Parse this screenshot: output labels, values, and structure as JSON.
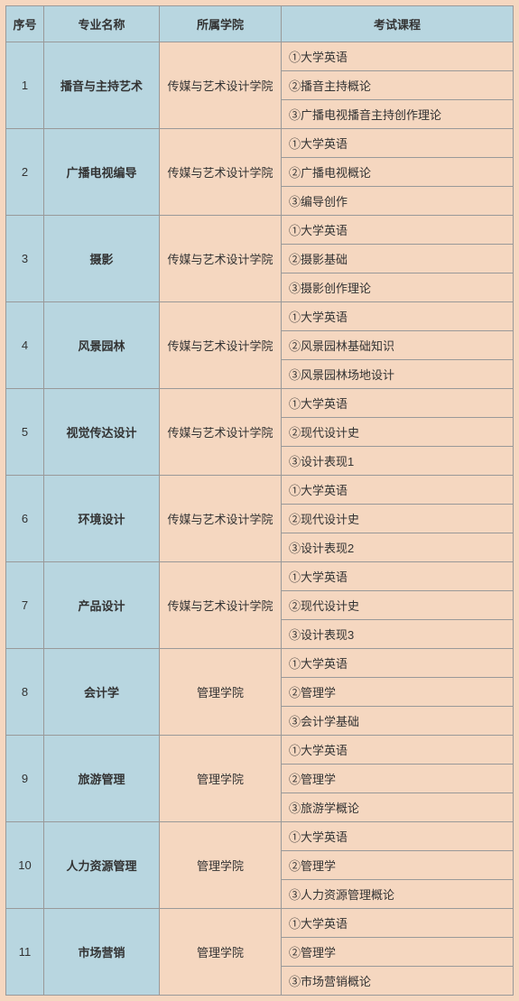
{
  "table": {
    "headers": {
      "seq": "序号",
      "major": "专业名称",
      "college": "所属学院",
      "course": "考试课程"
    },
    "colors": {
      "header_bg": "#b8d6e0",
      "blue_cell_bg": "#b8d6e0",
      "peach_cell_bg": "#f5d7c0",
      "border": "#999",
      "text": "#333"
    },
    "column_widths": {
      "seq": 42,
      "major": 128,
      "college": 135
    },
    "fontsize": 13,
    "rows": [
      {
        "seq": "1",
        "major": "播音与主持艺术",
        "college": "传媒与艺术设计学院",
        "courses": [
          "①大学英语",
          "②播音主持概论",
          "③广播电视播音主持创作理论"
        ]
      },
      {
        "seq": "2",
        "major": "广播电视编导",
        "college": "传媒与艺术设计学院",
        "courses": [
          "①大学英语",
          "②广播电视概论",
          "③编导创作"
        ]
      },
      {
        "seq": "3",
        "major": "摄影",
        "college": "传媒与艺术设计学院",
        "courses": [
          "①大学英语",
          "②摄影基础",
          "③摄影创作理论"
        ]
      },
      {
        "seq": "4",
        "major": "风景园林",
        "college": "传媒与艺术设计学院",
        "courses": [
          "①大学英语",
          "②风景园林基础知识",
          "③风景园林场地设计"
        ]
      },
      {
        "seq": "5",
        "major": "视觉传达设计",
        "college": "传媒与艺术设计学院",
        "courses": [
          "①大学英语",
          "②现代设计史",
          "③设计表现1"
        ]
      },
      {
        "seq": "6",
        "major": "环境设计",
        "college": "传媒与艺术设计学院",
        "courses": [
          "①大学英语",
          "②现代设计史",
          "③设计表现2"
        ]
      },
      {
        "seq": "7",
        "major": "产品设计",
        "college": "传媒与艺术设计学院",
        "courses": [
          "①大学英语",
          "②现代设计史",
          "③设计表现3"
        ]
      },
      {
        "seq": "8",
        "major": "会计学",
        "college": "管理学院",
        "courses": [
          "①大学英语",
          "②管理学",
          "③会计学基础"
        ]
      },
      {
        "seq": "9",
        "major": "旅游管理",
        "college": "管理学院",
        "courses": [
          "①大学英语",
          "②管理学",
          "③旅游学概论"
        ]
      },
      {
        "seq": "10",
        "major": "人力资源管理",
        "college": "管理学院",
        "courses": [
          "①大学英语",
          "②管理学",
          "③人力资源管理概论"
        ]
      },
      {
        "seq": "11",
        "major": "市场营销",
        "college": "管理学院",
        "courses": [
          "①大学英语",
          "②管理学",
          "③市场营销概论"
        ]
      }
    ]
  }
}
